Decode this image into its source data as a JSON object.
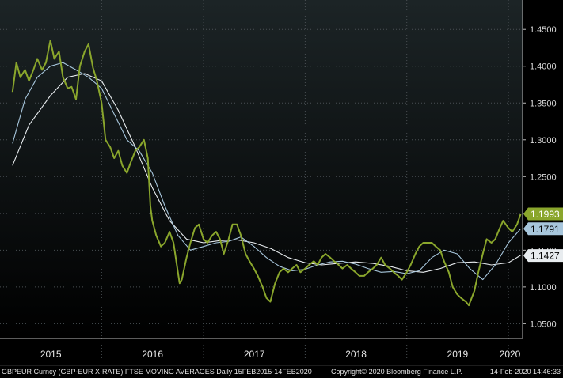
{
  "chart_data": {
    "type": "line",
    "title": "",
    "xlabel": "",
    "ylabel": "",
    "ylim": [
      1.03,
      1.49
    ],
    "xlim": [
      "2015-01-01",
      "2020-02-21"
    ],
    "grid": true,
    "y_ticks": [
      "1.4500",
      "1.4000",
      "1.3500",
      "1.3000",
      "1.2500",
      "1.2000",
      "1.1500",
      "1.1000",
      "1.0500"
    ],
    "x_ticks": [
      "2015",
      "2016",
      "2017",
      "2018",
      "2019",
      "2020"
    ],
    "colors": {
      "background": "#000000",
      "plot_top": "#1c2426",
      "price": "#8aa62c",
      "ma_short": "#a7c6dc",
      "ma_long": "#e8ecef",
      "grid": "#4a5054",
      "axis": "#b8b8b8"
    },
    "series": [
      {
        "key": "price",
        "x": [
          "2015-02-15",
          "2015-03-01",
          "2015-03-15",
          "2015-04-01",
          "2015-04-15",
          "2015-05-01",
          "2015-05-15",
          "2015-06-01",
          "2015-06-15",
          "2015-07-01",
          "2015-07-15",
          "2015-08-01",
          "2015-08-15",
          "2015-09-01",
          "2015-09-15",
          "2015-10-01",
          "2015-10-15",
          "2015-11-01",
          "2015-11-15",
          "2015-12-01",
          "2015-12-15",
          "2016-01-01",
          "2016-01-15",
          "2016-02-01",
          "2016-02-15",
          "2016-03-01",
          "2016-03-15",
          "2016-04-01",
          "2016-04-15",
          "2016-05-01",
          "2016-05-15",
          "2016-06-01",
          "2016-06-15",
          "2016-06-24",
          "2016-07-01",
          "2016-07-15",
          "2016-08-01",
          "2016-08-15",
          "2016-09-01",
          "2016-09-15",
          "2016-10-01",
          "2016-10-07",
          "2016-10-15",
          "2016-11-01",
          "2016-11-15",
          "2016-12-01",
          "2016-12-15",
          "2017-01-01",
          "2017-01-15",
          "2017-02-01",
          "2017-02-15",
          "2017-03-01",
          "2017-03-15",
          "2017-04-01",
          "2017-04-15",
          "2017-05-01",
          "2017-05-15",
          "2017-06-01",
          "2017-06-15",
          "2017-07-01",
          "2017-07-15",
          "2017-08-01",
          "2017-08-15",
          "2017-08-29",
          "2017-09-15",
          "2017-10-01",
          "2017-10-15",
          "2017-11-01",
          "2017-11-15",
          "2017-12-01",
          "2017-12-15",
          "2018-01-01",
          "2018-01-15",
          "2018-02-01",
          "2018-02-15",
          "2018-03-01",
          "2018-03-15",
          "2018-04-01",
          "2018-04-15",
          "2018-05-01",
          "2018-05-15",
          "2018-06-01",
          "2018-06-15",
          "2018-07-01",
          "2018-07-15",
          "2018-08-01",
          "2018-08-15",
          "2018-09-01",
          "2018-09-15",
          "2018-10-01",
          "2018-10-15",
          "2018-11-01",
          "2018-11-15",
          "2018-12-01",
          "2018-12-15",
          "2019-01-01",
          "2019-01-15",
          "2019-02-01",
          "2019-02-15",
          "2019-03-01",
          "2019-03-15",
          "2019-04-01",
          "2019-04-15",
          "2019-05-01",
          "2019-05-15",
          "2019-06-01",
          "2019-06-15",
          "2019-07-01",
          "2019-07-15",
          "2019-08-01",
          "2019-08-12",
          "2019-09-01",
          "2019-09-15",
          "2019-10-01",
          "2019-10-15",
          "2019-11-01",
          "2019-11-15",
          "2019-12-01",
          "2019-12-13",
          "2020-01-01",
          "2020-01-15",
          "2020-02-01",
          "2020-02-14"
        ],
        "values": [
          1.365,
          1.405,
          1.385,
          1.395,
          1.38,
          1.395,
          1.41,
          1.395,
          1.405,
          1.435,
          1.41,
          1.42,
          1.385,
          1.37,
          1.372,
          1.355,
          1.4,
          1.42,
          1.43,
          1.398,
          1.38,
          1.35,
          1.3,
          1.29,
          1.275,
          1.285,
          1.265,
          1.255,
          1.27,
          1.285,
          1.29,
          1.3,
          1.275,
          1.21,
          1.19,
          1.17,
          1.155,
          1.16,
          1.175,
          1.16,
          1.12,
          1.105,
          1.11,
          1.14,
          1.16,
          1.18,
          1.185,
          1.165,
          1.16,
          1.17,
          1.175,
          1.165,
          1.145,
          1.165,
          1.185,
          1.185,
          1.17,
          1.145,
          1.135,
          1.125,
          1.115,
          1.1,
          1.085,
          1.08,
          1.105,
          1.12,
          1.125,
          1.12,
          1.125,
          1.13,
          1.12,
          1.125,
          1.13,
          1.135,
          1.13,
          1.14,
          1.145,
          1.14,
          1.135,
          1.13,
          1.125,
          1.13,
          1.125,
          1.12,
          1.115,
          1.115,
          1.12,
          1.125,
          1.13,
          1.14,
          1.13,
          1.125,
          1.12,
          1.115,
          1.11,
          1.12,
          1.13,
          1.145,
          1.155,
          1.16,
          1.16,
          1.16,
          1.155,
          1.15,
          1.135,
          1.12,
          1.1,
          1.09,
          1.085,
          1.08,
          1.075,
          1.095,
          1.12,
          1.145,
          1.165,
          1.16,
          1.165,
          1.18,
          1.19,
          1.18,
          1.175,
          1.185,
          1.199
        ]
      },
      {
        "key": "ma_short",
        "x": [
          "2015-02-15",
          "2015-04-01",
          "2015-05-15",
          "2015-07-01",
          "2015-08-15",
          "2015-10-01",
          "2015-11-15",
          "2016-01-01",
          "2016-02-15",
          "2016-04-01",
          "2016-05-15",
          "2016-07-01",
          "2016-08-15",
          "2016-10-01",
          "2016-11-15",
          "2017-01-01",
          "2017-02-15",
          "2017-04-01",
          "2017-05-15",
          "2017-07-01",
          "2017-08-15",
          "2017-10-01",
          "2017-11-15",
          "2018-01-01",
          "2018-02-15",
          "2018-04-01",
          "2018-05-15",
          "2018-07-01",
          "2018-08-15",
          "2018-10-01",
          "2018-11-15",
          "2019-01-01",
          "2019-02-15",
          "2019-04-01",
          "2019-05-15",
          "2019-07-01",
          "2019-08-15",
          "2019-10-01",
          "2019-11-15",
          "2020-01-01",
          "2020-02-14"
        ],
        "values": [
          1.295,
          1.355,
          1.385,
          1.4,
          1.405,
          1.395,
          1.385,
          1.37,
          1.335,
          1.3,
          1.285,
          1.255,
          1.21,
          1.17,
          1.15,
          1.155,
          1.16,
          1.162,
          1.168,
          1.155,
          1.14,
          1.128,
          1.122,
          1.124,
          1.13,
          1.134,
          1.135,
          1.131,
          1.125,
          1.12,
          1.121,
          1.118,
          1.122,
          1.14,
          1.15,
          1.145,
          1.125,
          1.11,
          1.13,
          1.16,
          1.179
        ]
      },
      {
        "key": "ma_long",
        "x": [
          "2015-02-15",
          "2015-04-15",
          "2015-07-01",
          "2015-09-01",
          "2015-11-01",
          "2016-01-01",
          "2016-03-01",
          "2016-05-01",
          "2016-07-01",
          "2016-09-01",
          "2016-11-01",
          "2017-01-01",
          "2017-03-01",
          "2017-05-01",
          "2017-07-01",
          "2017-09-01",
          "2017-11-01",
          "2018-01-01",
          "2018-03-01",
          "2018-05-01",
          "2018-07-01",
          "2018-09-01",
          "2018-11-01",
          "2019-01-01",
          "2019-03-01",
          "2019-05-01",
          "2019-07-01",
          "2019-09-01",
          "2019-11-01",
          "2020-01-01",
          "2020-02-14"
        ],
        "values": [
          1.265,
          1.32,
          1.36,
          1.385,
          1.39,
          1.38,
          1.34,
          1.29,
          1.235,
          1.19,
          1.165,
          1.16,
          1.163,
          1.164,
          1.16,
          1.152,
          1.14,
          1.133,
          1.13,
          1.132,
          1.134,
          1.132,
          1.128,
          1.122,
          1.12,
          1.125,
          1.133,
          1.134,
          1.13,
          1.133,
          1.143
        ]
      }
    ],
    "last_value_tags": [
      {
        "series": "price",
        "label": "1.1993",
        "value": 1.1993,
        "fill": "#8aa62c",
        "text_color": "#ffffff"
      },
      {
        "series": "ma_short",
        "label": "1.1791",
        "value": 1.1791,
        "fill": "#a7c6dc",
        "text_color": "#000000"
      },
      {
        "series": "ma_long",
        "label": "1.1427",
        "value": 1.1427,
        "fill": "#e8ecef",
        "text_color": "#000000"
      }
    ]
  },
  "footer": {
    "description": "GBPEUR Curncy (GBP-EUR X-RATE) FTSE MOVING AVERAGES  Daily 15FEB2015-14FEB2020",
    "copyright": "Copyright© 2020 Bloomberg Finance L.P.",
    "timestamp": "14-Feb-2020 14:46:33"
  }
}
